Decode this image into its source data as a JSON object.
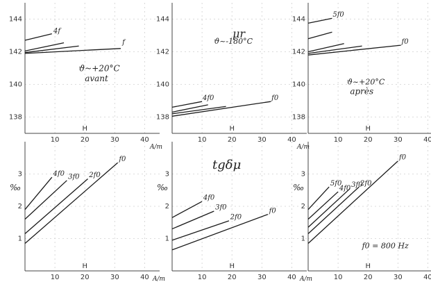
{
  "figure": {
    "top_row": {
      "ylim": [
        137,
        145
      ],
      "yticks": [
        "144",
        "142",
        "140",
        "138"
      ],
      "xlim": [
        0,
        45
      ],
      "xticks": [
        "10",
        "20",
        "30",
        "40"
      ],
      "xlabel": "H",
      "unit_label": "A/m"
    },
    "bottom_row": {
      "ylim": [
        0,
        4
      ],
      "yticks": [
        "3",
        "2",
        "1"
      ],
      "ylabel": "‰",
      "xlim": [
        0,
        45
      ],
      "xticks": [
        "10",
        "20",
        "30",
        "40"
      ],
      "xlabel": "H",
      "unit_label": "A/m"
    },
    "top_center_title": "μr",
    "bottom_center_title": "tgδμ"
  },
  "chart_data": [
    {
      "type": "line",
      "panel": "top-left",
      "annotations": [
        "ϑ~+20°C",
        "avant"
      ],
      "xlim": [
        0,
        45
      ],
      "ylim": [
        137,
        145
      ],
      "series": [
        {
          "name": "f",
          "x": [
            0,
            32
          ],
          "y": [
            141.9,
            142.2
          ]
        },
        {
          "x": [
            0,
            18
          ],
          "y": [
            141.95,
            142.35
          ]
        },
        {
          "x": [
            0,
            13
          ],
          "y": [
            142.05,
            142.55
          ]
        },
        {
          "name": "4f",
          "x": [
            0,
            9
          ],
          "y": [
            142.7,
            143.1
          ]
        }
      ]
    },
    {
      "type": "line",
      "panel": "top-center",
      "title": "μr",
      "annotations": [
        "ϑ~-180°C"
      ],
      "xlim": [
        0,
        45
      ],
      "ylim": [
        137,
        145
      ],
      "series": [
        {
          "name": "f0",
          "x": [
            0,
            33
          ],
          "y": [
            138.05,
            138.95
          ]
        },
        {
          "x": [
            0,
            18
          ],
          "y": [
            138.2,
            138.65
          ]
        },
        {
          "x": [
            0,
            12
          ],
          "y": [
            138.3,
            138.75
          ]
        },
        {
          "name": "4f0",
          "x": [
            0,
            10
          ],
          "y": [
            138.6,
            138.95
          ]
        }
      ]
    },
    {
      "type": "line",
      "panel": "top-right",
      "annotations": [
        "ϑ~+20°C",
        "après"
      ],
      "xlim": [
        0,
        45
      ],
      "ylim": [
        137,
        145
      ],
      "series": [
        {
          "name": "f0",
          "x": [
            0,
            31
          ],
          "y": [
            141.8,
            142.4
          ]
        },
        {
          "x": [
            0,
            18
          ],
          "y": [
            141.9,
            142.35
          ]
        },
        {
          "x": [
            0,
            12
          ],
          "y": [
            142.0,
            142.5
          ]
        },
        {
          "x": [
            0,
            8
          ],
          "y": [
            142.8,
            143.2
          ]
        },
        {
          "name": "5f0",
          "x": [
            0,
            8
          ],
          "y": [
            143.75,
            144.05
          ]
        }
      ]
    },
    {
      "type": "line",
      "panel": "bottom-left",
      "ylabel": "‰",
      "xlim": [
        0,
        45
      ],
      "ylim": [
        0,
        4
      ],
      "series": [
        {
          "name": "f0",
          "x": [
            0,
            31
          ],
          "y": [
            0.85,
            3.35
          ]
        },
        {
          "name": "2f0",
          "x": [
            0,
            21
          ],
          "y": [
            1.15,
            2.85
          ]
        },
        {
          "name": "3f0",
          "x": [
            0,
            14
          ],
          "y": [
            1.6,
            2.8
          ]
        },
        {
          "name": "4f0",
          "x": [
            0,
            9
          ],
          "y": [
            1.9,
            2.9
          ]
        }
      ]
    },
    {
      "type": "line",
      "panel": "bottom-center",
      "title": "tgδμ",
      "xlim": [
        0,
        45
      ],
      "ylim": [
        0,
        4
      ],
      "series": [
        {
          "name": "f0",
          "x": [
            0,
            32
          ],
          "y": [
            0.65,
            1.75
          ]
        },
        {
          "name": "2f0",
          "x": [
            0,
            19
          ],
          "y": [
            0.95,
            1.55
          ]
        },
        {
          "name": "3f0",
          "x": [
            0,
            14
          ],
          "y": [
            1.3,
            1.85
          ]
        },
        {
          "name": "4f0",
          "x": [
            0,
            10
          ],
          "y": [
            1.65,
            2.15
          ]
        }
      ]
    },
    {
      "type": "line",
      "panel": "bottom-right",
      "annotations": [
        "f0 = 800 Hz"
      ],
      "xlim": [
        0,
        45
      ],
      "ylim": [
        0,
        4
      ],
      "series": [
        {
          "name": "f0",
          "x": [
            0,
            30
          ],
          "y": [
            0.85,
            3.4
          ]
        },
        {
          "name": "2f0",
          "x": [
            0,
            17
          ],
          "y": [
            1.15,
            2.6
          ]
        },
        {
          "name": "3f0",
          "x": [
            0,
            14
          ],
          "y": [
            1.35,
            2.55
          ]
        },
        {
          "name": "4f0",
          "x": [
            0,
            10
          ],
          "y": [
            1.6,
            2.45
          ]
        },
        {
          "name": "5f0",
          "x": [
            0,
            7
          ],
          "y": [
            1.9,
            2.6
          ]
        }
      ]
    }
  ]
}
